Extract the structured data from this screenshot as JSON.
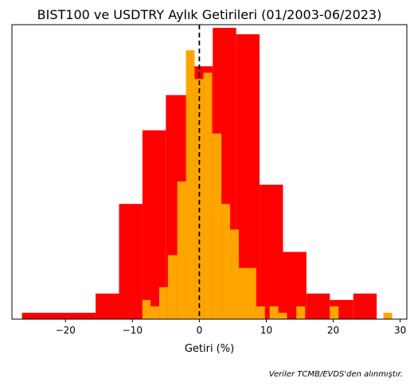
{
  "chart_data": {
    "type": "bar",
    "title": "BIST100 ve USDTRY Aylık Getirileri (01/2003-06/2023)",
    "xlabel": "Getiri (%)",
    "ylabel": "",
    "xlim": [
      -28,
      31
    ],
    "ylim": [
      0,
      0.092
    ],
    "grid": false,
    "y_ticks_visible": false,
    "x_ticks": [
      -20,
      -10,
      0,
      10,
      20,
      30
    ],
    "reference_line": {
      "x": 0,
      "style": "dashed",
      "color": "#000000"
    },
    "note": "Veriler TCMB/EVDS'den alınmıştır.",
    "series": [
      {
        "color": "#ff0000",
        "bins": [
          {
            "x0": -26.5,
            "x1": -15.5,
            "value": 0.002
          },
          {
            "x0": -15.5,
            "x1": -12.0,
            "value": 0.008
          },
          {
            "x0": -12.0,
            "x1": -8.5,
            "value": 0.036
          },
          {
            "x0": -8.5,
            "x1": -5.0,
            "value": 0.059
          },
          {
            "x0": -5.0,
            "x1": -1.5,
            "value": 0.07
          },
          {
            "x0": -1.5,
            "x1": 2.0,
            "value": 0.079
          },
          {
            "x0": 2.0,
            "x1": 5.5,
            "value": 0.091
          },
          {
            "x0": 5.5,
            "x1": 9.0,
            "value": 0.089
          },
          {
            "x0": 9.0,
            "x1": 12.5,
            "value": 0.042
          },
          {
            "x0": 12.5,
            "x1": 16.0,
            "value": 0.021
          },
          {
            "x0": 16.0,
            "x1": 19.5,
            "value": 0.008
          },
          {
            "x0": 19.5,
            "x1": 23.0,
            "value": 0.006
          },
          {
            "x0": 23.0,
            "x1": 26.5,
            "value": 0.008
          }
        ]
      },
      {
        "color": "#ffa500",
        "bins": [
          {
            "x0": -8.5,
            "x1": -7.3,
            "value": 0.006
          },
          {
            "x0": -7.3,
            "x1": -6.0,
            "value": 0.004
          },
          {
            "x0": -6.0,
            "x1": -4.7,
            "value": 0.01
          },
          {
            "x0": -4.7,
            "x1": -3.3,
            "value": 0.02
          },
          {
            "x0": -3.3,
            "x1": -2.0,
            "value": 0.043
          },
          {
            "x0": -2.0,
            "x1": -0.7,
            "value": 0.084
          },
          {
            "x0": -0.7,
            "x1": 0.6,
            "value": 0.075
          },
          {
            "x0": 0.6,
            "x1": 1.9,
            "value": 0.077
          },
          {
            "x0": 1.9,
            "x1": 3.3,
            "value": 0.058
          },
          {
            "x0": 3.3,
            "x1": 4.6,
            "value": 0.036
          },
          {
            "x0": 4.6,
            "x1": 5.9,
            "value": 0.028
          },
          {
            "x0": 5.9,
            "x1": 8.5,
            "value": 0.016
          },
          {
            "x0": 8.5,
            "x1": 9.8,
            "value": 0.004
          },
          {
            "x0": 10.5,
            "x1": 11.8,
            "value": 0.004
          },
          {
            "x0": 11.8,
            "x1": 13.1,
            "value": 0.002
          },
          {
            "x0": 14.5,
            "x1": 15.8,
            "value": 0.004
          },
          {
            "x0": 19.5,
            "x1": 20.8,
            "value": 0.004
          },
          {
            "x0": 27.5,
            "x1": 28.8,
            "value": 0.002
          }
        ]
      }
    ]
  }
}
